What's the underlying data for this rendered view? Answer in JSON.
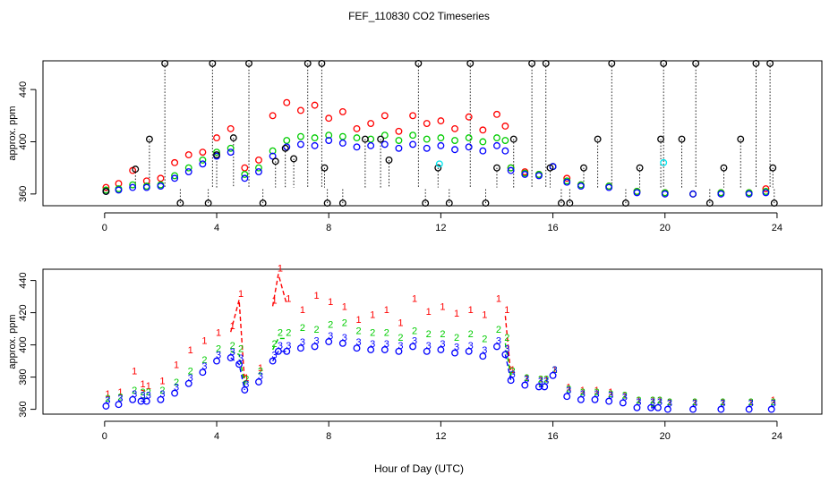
{
  "title": "FEF_110830  CO2 Timeseries",
  "xlabel": "Hour of Day (UTC)",
  "colors": {
    "series1": "#ff0000",
    "series2": "#00cc00",
    "series3": "#0000ff",
    "black": "#000000",
    "cyan": "#00e5ee"
  },
  "chart_data": [
    {
      "type": "scatter",
      "panel": "top",
      "ylabel": "approx. ppm",
      "xlim": [
        -2.2,
        25.6
      ],
      "ylim": [
        351,
        462
      ],
      "x_ticks": [
        0,
        4,
        8,
        12,
        16,
        20,
        24
      ],
      "y_ticks": [
        360,
        400,
        440
      ],
      "series": [
        {
          "color": "red",
          "x": [
            0.05,
            0.5,
            1.0,
            1.5,
            2.0,
            2.5,
            3.0,
            3.5,
            4.0,
            4.5,
            5.0,
            5.5,
            6.0,
            6.5,
            7.0,
            7.5,
            8.0,
            8.5,
            9.0,
            9.5,
            10.0,
            10.5,
            11.0,
            11.5,
            12.0,
            12.5,
            13.0,
            13.5,
            14.0,
            14.3,
            14.5,
            15.0,
            15.5,
            16.0,
            16.5,
            17.0,
            18.0,
            19.0,
            20.0,
            21.0,
            22.0,
            23.0,
            23.6
          ],
          "y": [
            365,
            368,
            378,
            370,
            372,
            384,
            390,
            392,
            403,
            410,
            380,
            386,
            420,
            430,
            424,
            428,
            418,
            423,
            410,
            414,
            420,
            408,
            420,
            414,
            416,
            410,
            419,
            409,
            421,
            412,
            380,
            377,
            375,
            381,
            372,
            367,
            366,
            362,
            361,
            360,
            361,
            361,
            364
          ]
        },
        {
          "color": "green",
          "x": [
            0.05,
            0.5,
            1.0,
            1.5,
            2.0,
            2.5,
            3.0,
            3.5,
            4.0,
            4.5,
            5.0,
            5.5,
            6.0,
            6.5,
            7.0,
            7.5,
            8.0,
            8.5,
            9.0,
            9.5,
            10.0,
            10.5,
            11.0,
            11.5,
            12.0,
            12.5,
            13.0,
            13.5,
            14.0,
            14.3,
            14.5,
            15.0,
            15.5,
            16.0,
            16.5,
            17.0,
            18.0,
            19.0,
            20.0,
            21.0,
            22.0,
            23.0,
            23.6
          ],
          "y": [
            363,
            364,
            367,
            366,
            367,
            374,
            380,
            386,
            392,
            395,
            375,
            380,
            393,
            401,
            404,
            403,
            405,
            404,
            403,
            402,
            405,
            401,
            405,
            402,
            403,
            401,
            403,
            400,
            403,
            401,
            380,
            376,
            375,
            381,
            370,
            367,
            366,
            362,
            361,
            360,
            361,
            361,
            362
          ]
        },
        {
          "color": "blue",
          "x": [
            0.05,
            0.5,
            1.0,
            1.5,
            2.0,
            2.5,
            3.0,
            3.5,
            4.0,
            4.5,
            5.0,
            5.5,
            6.0,
            6.5,
            7.0,
            7.5,
            8.0,
            8.5,
            9.0,
            9.5,
            10.0,
            10.5,
            11.0,
            11.5,
            12.0,
            12.5,
            13.0,
            13.5,
            14.0,
            14.3,
            14.5,
            15.0,
            15.5,
            16.0,
            16.5,
            17.0,
            18.0,
            19.0,
            20.0,
            21.0,
            22.0,
            23.0,
            23.6
          ],
          "y": [
            362,
            363,
            365,
            365,
            366,
            372,
            377,
            383,
            389,
            392,
            372,
            377,
            389,
            396,
            398,
            397,
            401,
            399,
            396,
            397,
            398,
            395,
            398,
            395,
            397,
            394,
            396,
            393,
            397,
            393,
            378,
            375,
            374,
            381,
            369,
            366,
            365,
            361,
            360,
            360,
            360,
            360,
            361
          ]
        },
        {
          "color": "black",
          "x": [
            0.05,
            1.1,
            1.6,
            2.15,
            2.7,
            3.7,
            3.85,
            4.0,
            4.6,
            5.15,
            5.65,
            6.1,
            6.45,
            6.75,
            7.25,
            7.75,
            7.85,
            7.95,
            8.5,
            9.3,
            9.85,
            10.15,
            11.2,
            11.45,
            11.9,
            12.3,
            13.05,
            13.6,
            14.0,
            14.6,
            15.25,
            15.75,
            15.9,
            16.3,
            16.6,
            17.1,
            17.6,
            18.1,
            18.6,
            19.1,
            19.85,
            19.95,
            20.6,
            21.1,
            21.6,
            22.1,
            22.7,
            23.25,
            23.75,
            23.85,
            23.9
          ],
          "y": [
            362,
            379,
            402,
            460,
            353,
            353,
            460,
            390,
            403,
            460,
            353,
            385,
            395,
            387,
            460,
            460,
            380,
            353,
            353,
            402,
            402,
            386,
            460,
            353,
            380,
            353,
            460,
            353,
            380,
            402,
            460,
            460,
            380,
            353,
            353,
            380,
            402,
            460,
            353,
            380,
            402,
            460,
            402,
            460,
            353,
            380,
            402,
            460,
            460,
            380,
            353
          ]
        },
        {
          "color": "cyan",
          "x": [
            11.95,
            19.95
          ],
          "y": [
            383,
            384
          ]
        }
      ]
    },
    {
      "type": "line",
      "panel": "bottom",
      "ylabel": "approx. ppm",
      "xlim": [
        -2.2,
        25.6
      ],
      "ylim": [
        357,
        447
      ],
      "x_ticks": [
        0,
        4,
        8,
        12,
        16,
        20,
        24
      ],
      "y_ticks": [
        360,
        380,
        400,
        420,
        440
      ],
      "series": [
        {
          "color": "red",
          "x": [
            0.05,
            0.5,
            1.0,
            1.3,
            1.5,
            2.0,
            2.5,
            3.0,
            3.5,
            4.0,
            4.5,
            4.8,
            5.0,
            5.5,
            6.0,
            6.2,
            6.5,
            7.0,
            7.5,
            8.0,
            8.5,
            9.0,
            9.5,
            10.0,
            10.5,
            11.0,
            11.5,
            12.0,
            12.5,
            13.0,
            13.5,
            14.0,
            14.3,
            14.5,
            15.0,
            15.5,
            15.7,
            16.0,
            16.5,
            17.0,
            17.5,
            18.0,
            18.5,
            19.0,
            19.5,
            19.75,
            20.1,
            21.0,
            22.0,
            23.0,
            23.8
          ],
          "y": [
            366,
            367,
            380,
            372,
            371,
            374,
            384,
            393,
            399,
            404,
            408,
            428,
            376,
            382,
            424,
            444,
            425,
            418,
            427,
            423,
            420,
            412,
            415,
            418,
            410,
            425,
            417,
            420,
            416,
            418,
            415,
            425,
            418,
            381,
            376,
            375,
            375,
            381,
            370,
            368,
            368,
            367,
            365,
            362,
            362,
            362,
            361,
            361,
            361,
            361,
            362
          ]
        },
        {
          "color": "green",
          "x": [
            0.05,
            0.5,
            1.0,
            1.3,
            1.5,
            2.0,
            2.5,
            3.0,
            3.5,
            4.0,
            4.5,
            4.8,
            5.0,
            5.5,
            6.0,
            6.2,
            6.5,
            7.0,
            7.5,
            8.0,
            8.5,
            9.0,
            9.5,
            10.0,
            10.5,
            11.0,
            11.5,
            12.0,
            12.5,
            13.0,
            13.5,
            14.0,
            14.3,
            14.5,
            15.0,
            15.5,
            15.7,
            16.0,
            16.5,
            17.0,
            17.5,
            18.0,
            18.5,
            19.0,
            19.5,
            19.75,
            20.1,
            21.0,
            22.0,
            23.0,
            23.8
          ],
          "y": [
            363,
            364,
            368,
            367,
            367,
            368,
            373,
            380,
            387,
            394,
            396,
            394,
            375,
            380,
            397,
            404,
            404,
            407,
            406,
            409,
            410,
            405,
            404,
            404,
            401,
            405,
            403,
            403,
            401,
            403,
            400,
            406,
            401,
            380,
            376,
            375,
            375,
            381,
            369,
            367,
            367,
            366,
            365,
            362,
            362,
            362,
            361,
            361,
            361,
            361,
            361
          ]
        },
        {
          "color": "blue",
          "x": [
            0.05,
            0.5,
            1.0,
            1.3,
            1.5,
            2.0,
            2.5,
            3.0,
            3.5,
            4.0,
            4.5,
            4.8,
            5.0,
            5.5,
            6.0,
            6.2,
            6.5,
            7.0,
            7.5,
            8.0,
            8.5,
            9.0,
            9.5,
            10.0,
            10.5,
            11.0,
            11.5,
            12.0,
            12.5,
            13.0,
            13.5,
            14.0,
            14.3,
            14.5,
            15.0,
            15.5,
            15.7,
            16.0,
            16.5,
            17.0,
            17.5,
            18.0,
            18.5,
            19.0,
            19.5,
            19.75,
            20.1,
            21.0,
            22.0,
            23.0,
            23.8
          ],
          "y": [
            362,
            363,
            366,
            365,
            365,
            366,
            370,
            376,
            383,
            390,
            392,
            388,
            372,
            377,
            390,
            396,
            396,
            398,
            399,
            402,
            401,
            398,
            397,
            397,
            396,
            399,
            396,
            397,
            395,
            396,
            393,
            399,
            394,
            378,
            375,
            374,
            374,
            381,
            368,
            366,
            366,
            365,
            364,
            361,
            361,
            361,
            360,
            360,
            360,
            360,
            360
          ]
        }
      ]
    }
  ]
}
